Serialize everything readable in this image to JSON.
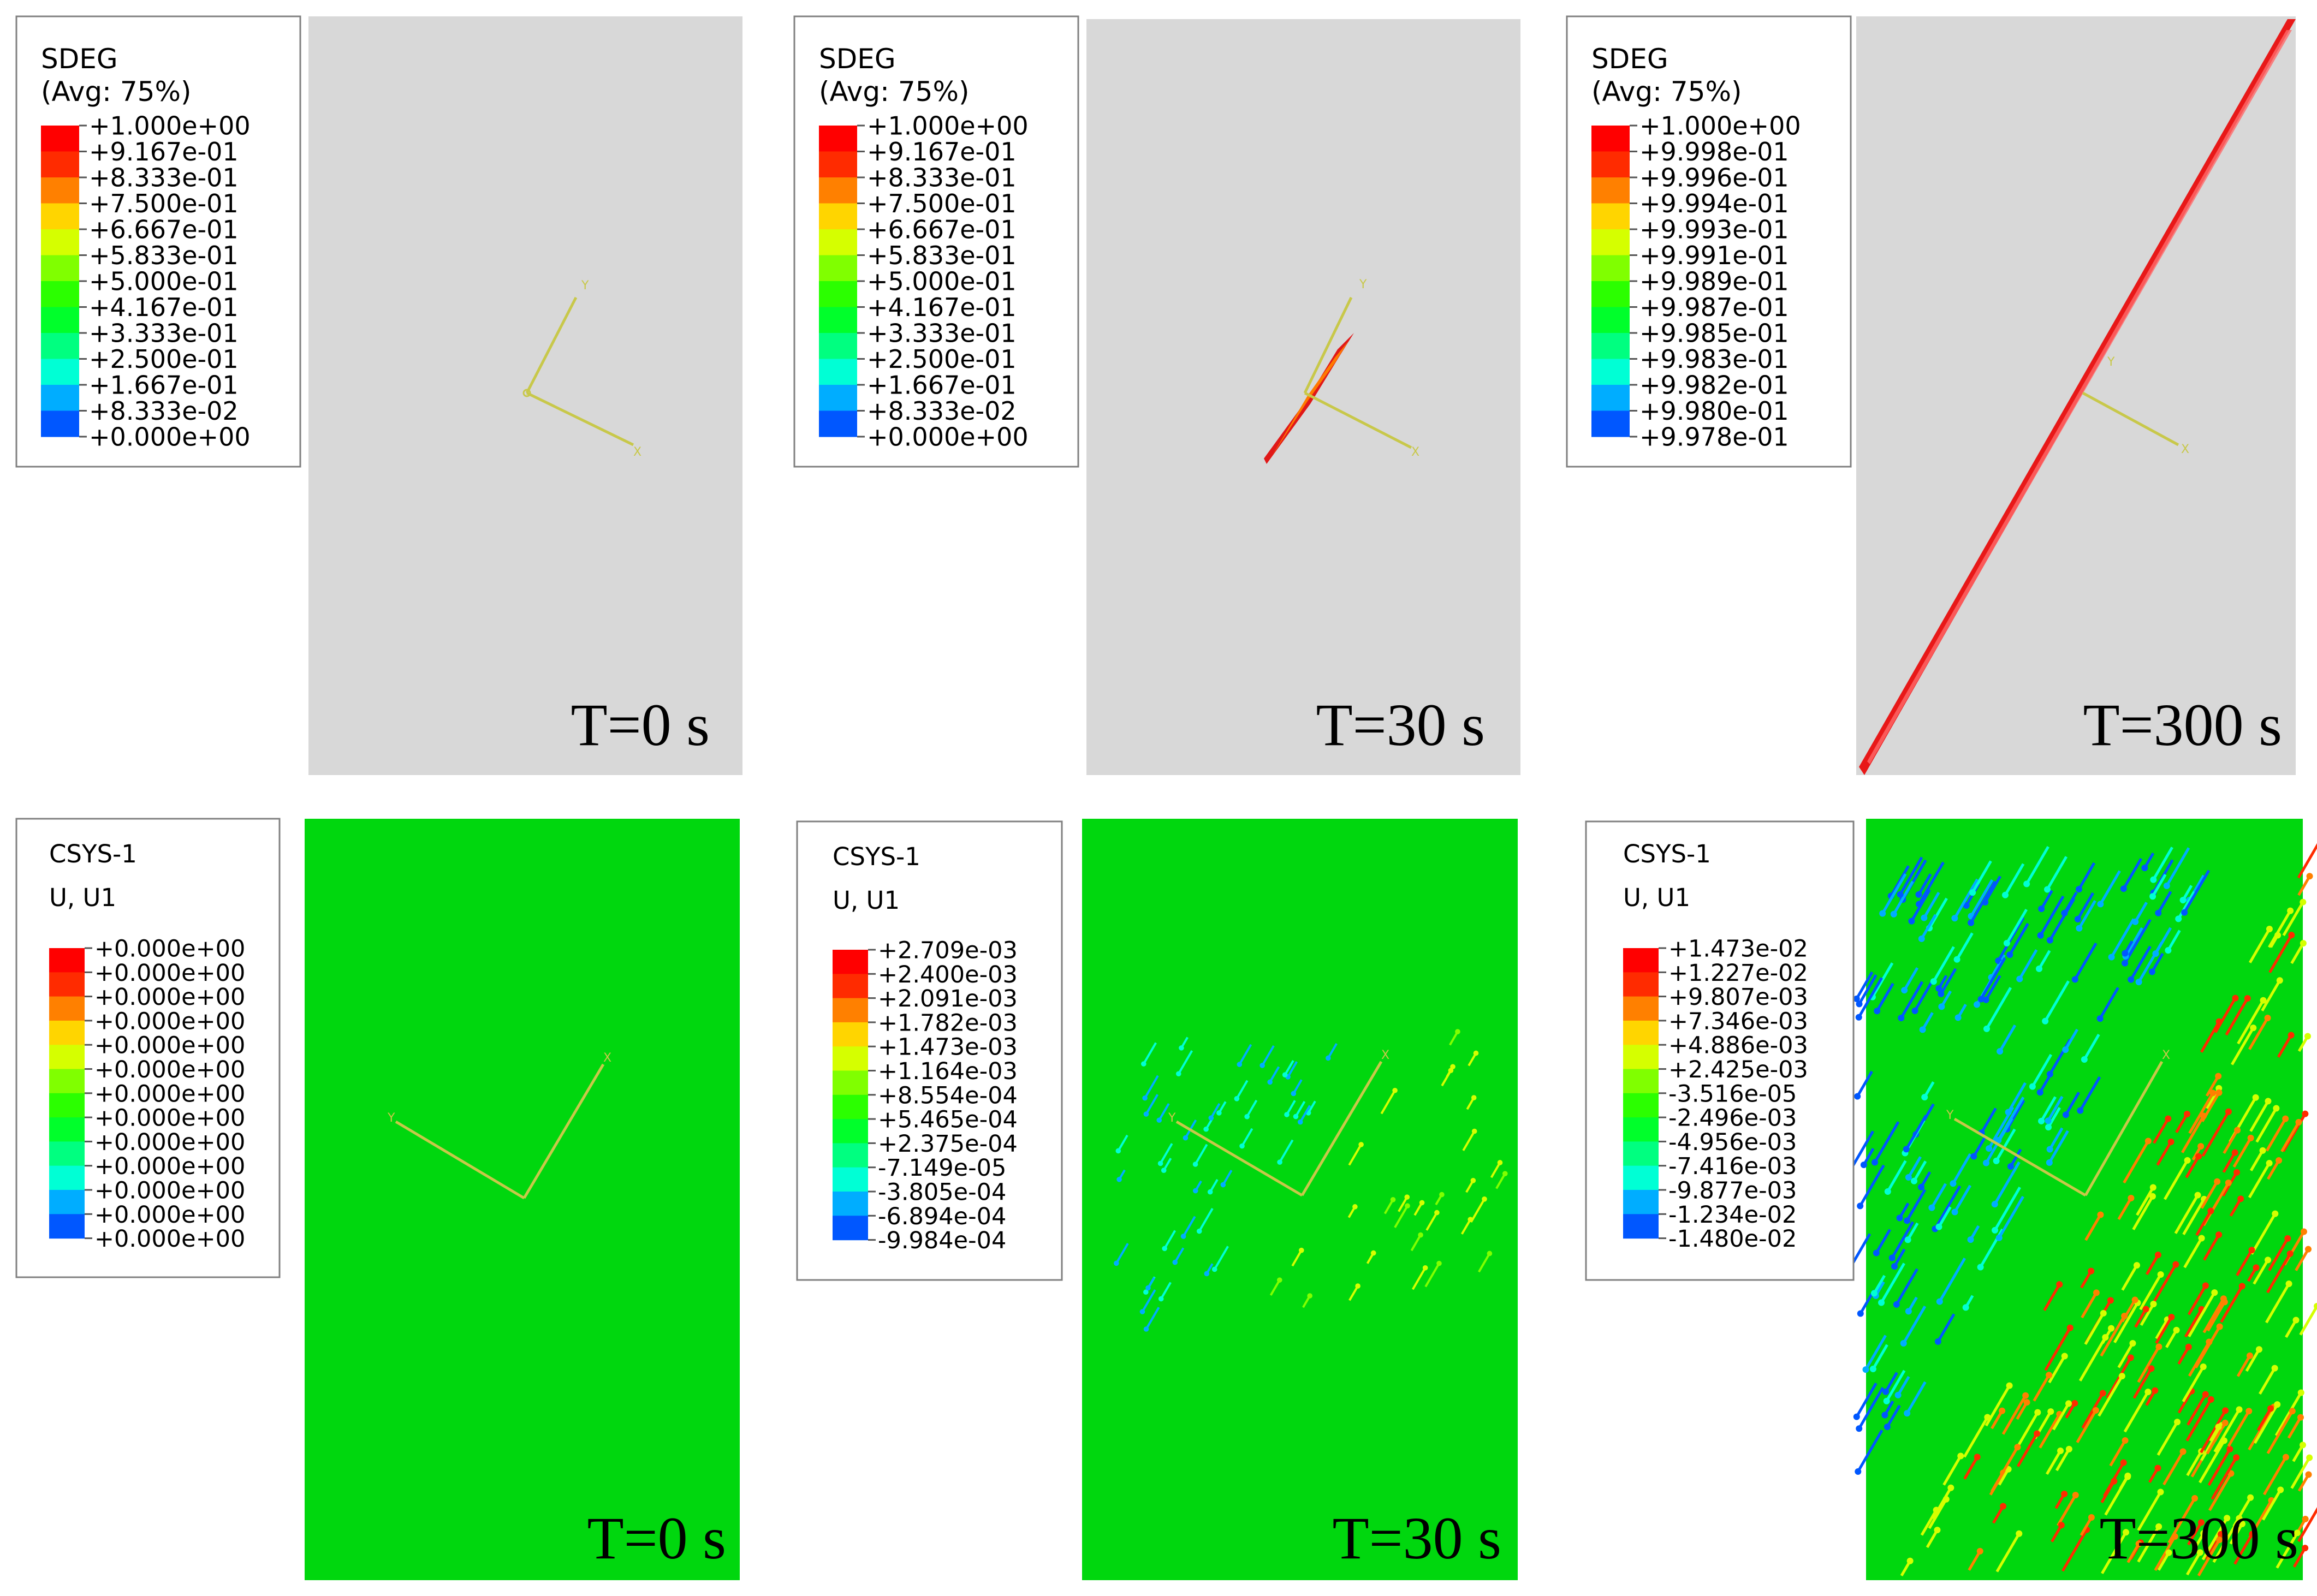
{
  "colormap": [
    "#0000ff",
    "#0057ff",
    "#00adff",
    "#00ffd5",
    "#00ff80",
    "#00ff2b",
    "#2bff00",
    "#80ff00",
    "#d5ff00",
    "#ffd500",
    "#ff8000",
    "#ff2b00",
    "#ff0000"
  ],
  "contour_background": "#d8d8d8",
  "displacement_background": "#00d70e",
  "triad_color": "#c8c84a",
  "panels": [
    {
      "row": "damage",
      "time_label": "T=0 s",
      "legend": {
        "title": "SDEG",
        "subtitle": "(Avg: 75%)",
        "values": [
          "+1.000e+00",
          "+9.167e-01",
          "+8.333e-01",
          "+7.500e-01",
          "+6.667e-01",
          "+5.833e-01",
          "+5.000e-01",
          "+4.167e-01",
          "+3.333e-01",
          "+2.500e-01",
          "+1.667e-01",
          "+8.333e-02",
          "+0.000e+00"
        ]
      },
      "triad": {
        "labels": [
          "Y",
          "X"
        ]
      }
    },
    {
      "row": "damage",
      "time_label": "T=30 s",
      "legend": {
        "title": "SDEG",
        "subtitle": "(Avg: 75%)",
        "values": [
          "+1.000e+00",
          "+9.167e-01",
          "+8.333e-01",
          "+7.500e-01",
          "+6.667e-01",
          "+5.833e-01",
          "+5.000e-01",
          "+4.167e-01",
          "+3.333e-01",
          "+2.500e-01",
          "+1.667e-01",
          "+8.333e-02",
          "+0.000e+00"
        ]
      },
      "triad": {
        "labels": [
          "Y",
          "X"
        ]
      }
    },
    {
      "row": "damage",
      "time_label": "T=300 s",
      "legend": {
        "title": "SDEG",
        "subtitle": "(Avg: 75%)",
        "values": [
          "+1.000e+00",
          "+9.998e-01",
          "+9.996e-01",
          "+9.994e-01",
          "+9.993e-01",
          "+9.991e-01",
          "+9.989e-01",
          "+9.987e-01",
          "+9.985e-01",
          "+9.983e-01",
          "+9.982e-01",
          "+9.980e-01",
          "+9.978e-01"
        ]
      },
      "triad": {
        "labels": [
          "Y",
          "X"
        ]
      }
    },
    {
      "row": "displacement",
      "time_label": "T=0 s",
      "legend": {
        "title": "CSYS-1",
        "subtitle": "U, U1",
        "values": [
          "+0.000e+00",
          "+0.000e+00",
          "+0.000e+00",
          "+0.000e+00",
          "+0.000e+00",
          "+0.000e+00",
          "+0.000e+00",
          "+0.000e+00",
          "+0.000e+00",
          "+0.000e+00",
          "+0.000e+00",
          "+0.000e+00",
          "+0.000e+00"
        ]
      },
      "triad": {
        "labels": [
          "Y",
          "X"
        ]
      }
    },
    {
      "row": "displacement",
      "time_label": "T=30 s",
      "legend": {
        "title": "CSYS-1",
        "subtitle": "U, U1",
        "values": [
          "+2.709e-03",
          "+2.400e-03",
          "+2.091e-03",
          "+1.782e-03",
          "+1.473e-03",
          "+1.164e-03",
          "+8.554e-04",
          "+5.465e-04",
          "+2.375e-04",
          "-7.149e-05",
          "-3.805e-04",
          "-6.894e-04",
          "-9.984e-04"
        ]
      },
      "triad": {
        "labels": [
          "Y",
          "X"
        ]
      }
    },
    {
      "row": "displacement",
      "time_label": "T=300 s",
      "legend": {
        "title": "CSYS-1",
        "subtitle": "U, U1",
        "values": [
          "+1.473e-02",
          "+1.227e-02",
          "+9.807e-03",
          "+7.346e-03",
          "+4.886e-03",
          "+2.425e-03",
          "-3.516e-05",
          "-2.496e-03",
          "-4.956e-03",
          "-7.416e-03",
          "-9.877e-03",
          "-1.234e-02",
          "-1.480e-02"
        ]
      },
      "triad": {
        "labels": [
          "Y",
          "X"
        ]
      }
    }
  ]
}
